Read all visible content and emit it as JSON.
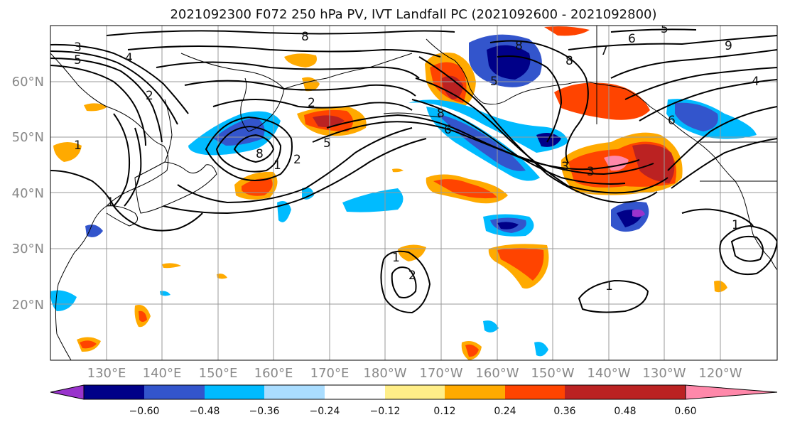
{
  "title": "2021092300 F072 250 hPa PV, IVT Landfall PC (2021092600 - 2021092800)",
  "map": {
    "lat_labels": [
      "60°N",
      "50°N",
      "40°N",
      "30°N",
      "20°N"
    ],
    "lon_labels": [
      "130°E",
      "140°E",
      "150°E",
      "160°E",
      "170°E",
      "180°W",
      "170°W",
      "160°W",
      "150°W",
      "140°W",
      "130°W",
      "120°W"
    ],
    "contour_labels": [
      "3",
      "5",
      "4",
      "8",
      "8",
      "7",
      "6",
      "5",
      "9",
      "4",
      "2",
      "8",
      "6",
      "5",
      "8",
      "2",
      "2",
      "1",
      "5",
      "8",
      "6",
      "1",
      "3",
      "3",
      "2",
      "1",
      "1",
      "1",
      "1"
    ]
  },
  "colorbar": {
    "colors": [
      "#9933cc",
      "#000088",
      "#3355cc",
      "#00bbff",
      "#aaddff",
      "#ffffff",
      "#ffee88",
      "#ffaa00",
      "#ff4400",
      "#bb2222",
      "#ff88aa"
    ],
    "tick_labels": [
      "−0.60",
      "−0.48",
      "−0.36",
      "−0.24",
      "−0.12",
      "0.12",
      "0.24",
      "0.36",
      "0.48",
      "0.60"
    ]
  }
}
